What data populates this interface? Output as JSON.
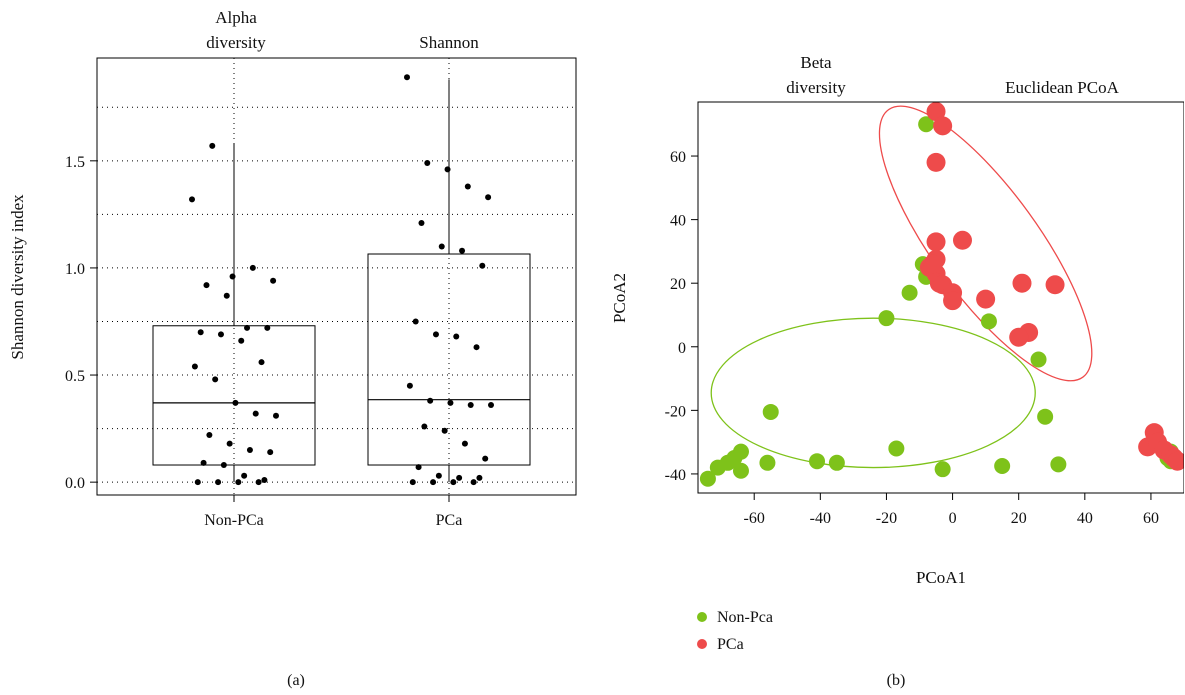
{
  "colors": {
    "green": "#7ec21a",
    "red": "#ee4b4b",
    "black": "#000000"
  },
  "panel_a": {
    "caption": "(a)",
    "title_left": [
      "Alpha",
      "diversity"
    ],
    "title_right": "Shannon",
    "ylabel": "Shannon diversity index",
    "chart_data": {
      "type": "box",
      "categories": [
        "Non-PCa",
        "PCa"
      ],
      "ylim": [
        -0.06,
        1.98
      ],
      "yticks": [
        0.0,
        0.5,
        1.0,
        1.5
      ],
      "ytick_labels": [
        "0.0",
        "0.5",
        "1.0",
        "1.5"
      ],
      "grid_y": [
        0.0,
        0.25,
        0.5,
        0.75,
        1.0,
        1.25,
        1.5,
        1.75
      ],
      "grid": true,
      "boxes": [
        {
          "name": "Non-PCa",
          "whisker_low": 0.0,
          "q1": 0.08,
          "median": 0.37,
          "q3": 0.73,
          "whisker_high": 1.58
        },
        {
          "name": "PCa",
          "whisker_low": 0.0,
          "q1": 0.08,
          "median": 0.385,
          "q3": 1.065,
          "whisker_high": 1.88
        }
      ],
      "points": [
        {
          "group": 0,
          "values": [
            1.32,
            1.57,
            0.96,
            1.0,
            0.94,
            0.92,
            0.87,
            0.72,
            0.72,
            0.7,
            0.69,
            0.66,
            0.56,
            0.54,
            0.48,
            0.37,
            0.32,
            0.31,
            0.22,
            0.18,
            0.15,
            0.14,
            0.09,
            0.08,
            0.03,
            0.01,
            0.0,
            0.0,
            0.0,
            0.0
          ]
        },
        {
          "group": 1,
          "values": [
            1.89,
            1.49,
            1.46,
            1.38,
            1.33,
            1.21,
            1.1,
            1.08,
            1.01,
            0.75,
            0.69,
            0.68,
            0.63,
            0.45,
            0.38,
            0.37,
            0.36,
            0.36,
            0.26,
            0.24,
            0.18,
            0.11,
            0.07,
            0.03,
            0.02,
            0.02,
            0.0,
            0.0,
            0.0,
            0.0
          ]
        }
      ],
      "xticks": [
        0,
        1
      ]
    }
  },
  "panel_b": {
    "caption": "(b)",
    "title_left": [
      "Beta",
      "diversity"
    ],
    "title_right": "Euclidean PCoA",
    "xlabel": "PCoA1",
    "ylabel": "PCoA2",
    "legend": [
      {
        "label": "Non-Pca",
        "color": "#7ec21a"
      },
      {
        "label": "PCa",
        "color": "#ee4b4b"
      }
    ],
    "chart_data": {
      "type": "scatter",
      "xlim": [
        -77,
        70
      ],
      "ylim": [
        -46,
        77
      ],
      "xticks": [
        -60,
        -40,
        -20,
        0,
        20,
        40,
        60
      ],
      "xtick_labels": [
        "-60",
        "-40",
        "-20",
        "0",
        "20",
        "40",
        "60"
      ],
      "yticks": [
        -40,
        -20,
        0,
        20,
        40,
        60
      ],
      "ytick_labels": [
        "-40",
        "-20",
        "0",
        "20",
        "40",
        "60"
      ],
      "series": [
        {
          "name": "Non-Pca",
          "color": "#7ec21a",
          "points": [
            [
              -74,
              -41.5
            ],
            [
              -71,
              -38
            ],
            [
              -68,
              -36.5
            ],
            [
              -66,
              -35
            ],
            [
              -64,
              -33
            ],
            [
              -64,
              -39
            ],
            [
              -55,
              -20.5
            ],
            [
              -56,
              -36.5
            ],
            [
              -41,
              -36
            ],
            [
              -35,
              -36.5
            ],
            [
              -17,
              -32
            ],
            [
              -3,
              -38.5
            ],
            [
              15,
              -37.5
            ],
            [
              32,
              -37
            ],
            [
              28,
              -22
            ],
            [
              26,
              -4
            ],
            [
              11,
              8
            ],
            [
              -20,
              9
            ],
            [
              -13,
              17
            ],
            [
              -9,
              26
            ],
            [
              -8,
              22
            ],
            [
              -8,
              70
            ],
            [
              65,
              -35
            ],
            [
              66,
              -36
            ],
            [
              66,
              -33
            ],
            [
              67,
              -35
            ],
            [
              68,
              -36
            ]
          ]
        },
        {
          "name": "PCa",
          "color": "#ee4b4b",
          "points": [
            [
              -5,
              74
            ],
            [
              -3,
              69.5
            ],
            [
              -5,
              58
            ],
            [
              -5,
              33
            ],
            [
              3,
              33.5
            ],
            [
              -7,
              25
            ],
            [
              -5,
              27.5
            ],
            [
              -5,
              23
            ],
            [
              -4,
              20
            ],
            [
              -3,
              19.5
            ],
            [
              -6,
              26
            ],
            [
              0,
              17
            ],
            [
              0,
              14.5
            ],
            [
              10,
              15
            ],
            [
              21,
              20
            ],
            [
              31,
              19.5
            ],
            [
              23,
              4.5
            ],
            [
              20,
              3
            ],
            [
              59,
              -31.5
            ],
            [
              61,
              -27
            ],
            [
              62,
              -30
            ],
            [
              64,
              -32.5
            ],
            [
              66,
              -34
            ],
            [
              67,
              -35
            ],
            [
              68,
              -36
            ]
          ]
        }
      ],
      "ellipses": [
        {
          "color": "#7ec21a",
          "cx": -24,
          "cy": -14.5,
          "rx": 49,
          "ry": 23.5,
          "angle": 0
        },
        {
          "color": "#ee4b4b",
          "cx": 10,
          "cy": 32.5,
          "rx": 16,
          "ry": 52,
          "angle": -36
        }
      ]
    }
  }
}
